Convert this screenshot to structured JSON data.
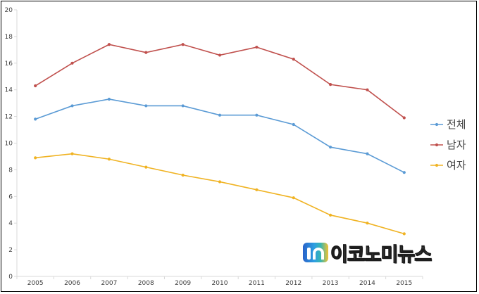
{
  "chart_data": {
    "type": "line",
    "title": "",
    "xlabel": "",
    "ylabel": "",
    "x": [
      "2005",
      "2006",
      "2007",
      "2008",
      "2009",
      "2010",
      "2011",
      "2012",
      "2013",
      "2014",
      "2015"
    ],
    "ylim": [
      0,
      20
    ],
    "yticks": [
      "0",
      "2",
      "4",
      "6",
      "8",
      "10",
      "12",
      "14",
      "16",
      "18",
      "20"
    ],
    "grid": false,
    "legend_position": "right",
    "series": [
      {
        "name": "전체",
        "color": "#5b9bd5",
        "values": [
          11.8,
          12.8,
          13.3,
          12.8,
          12.8,
          12.1,
          12.1,
          11.4,
          9.7,
          9.2,
          7.8
        ]
      },
      {
        "name": "남자",
        "color": "#c0504d",
        "values": [
          14.3,
          16.0,
          17.4,
          16.8,
          17.4,
          16.6,
          17.2,
          16.3,
          14.4,
          14.0,
          11.9
        ]
      },
      {
        "name": "여자",
        "color": "#f0b323",
        "values": [
          8.9,
          9.2,
          8.8,
          8.2,
          7.6,
          7.1,
          6.5,
          5.9,
          4.6,
          4.0,
          3.2
        ]
      }
    ]
  },
  "watermark": {
    "text": "이코노미뉴스",
    "icon": "economy-news-logo-icon"
  }
}
